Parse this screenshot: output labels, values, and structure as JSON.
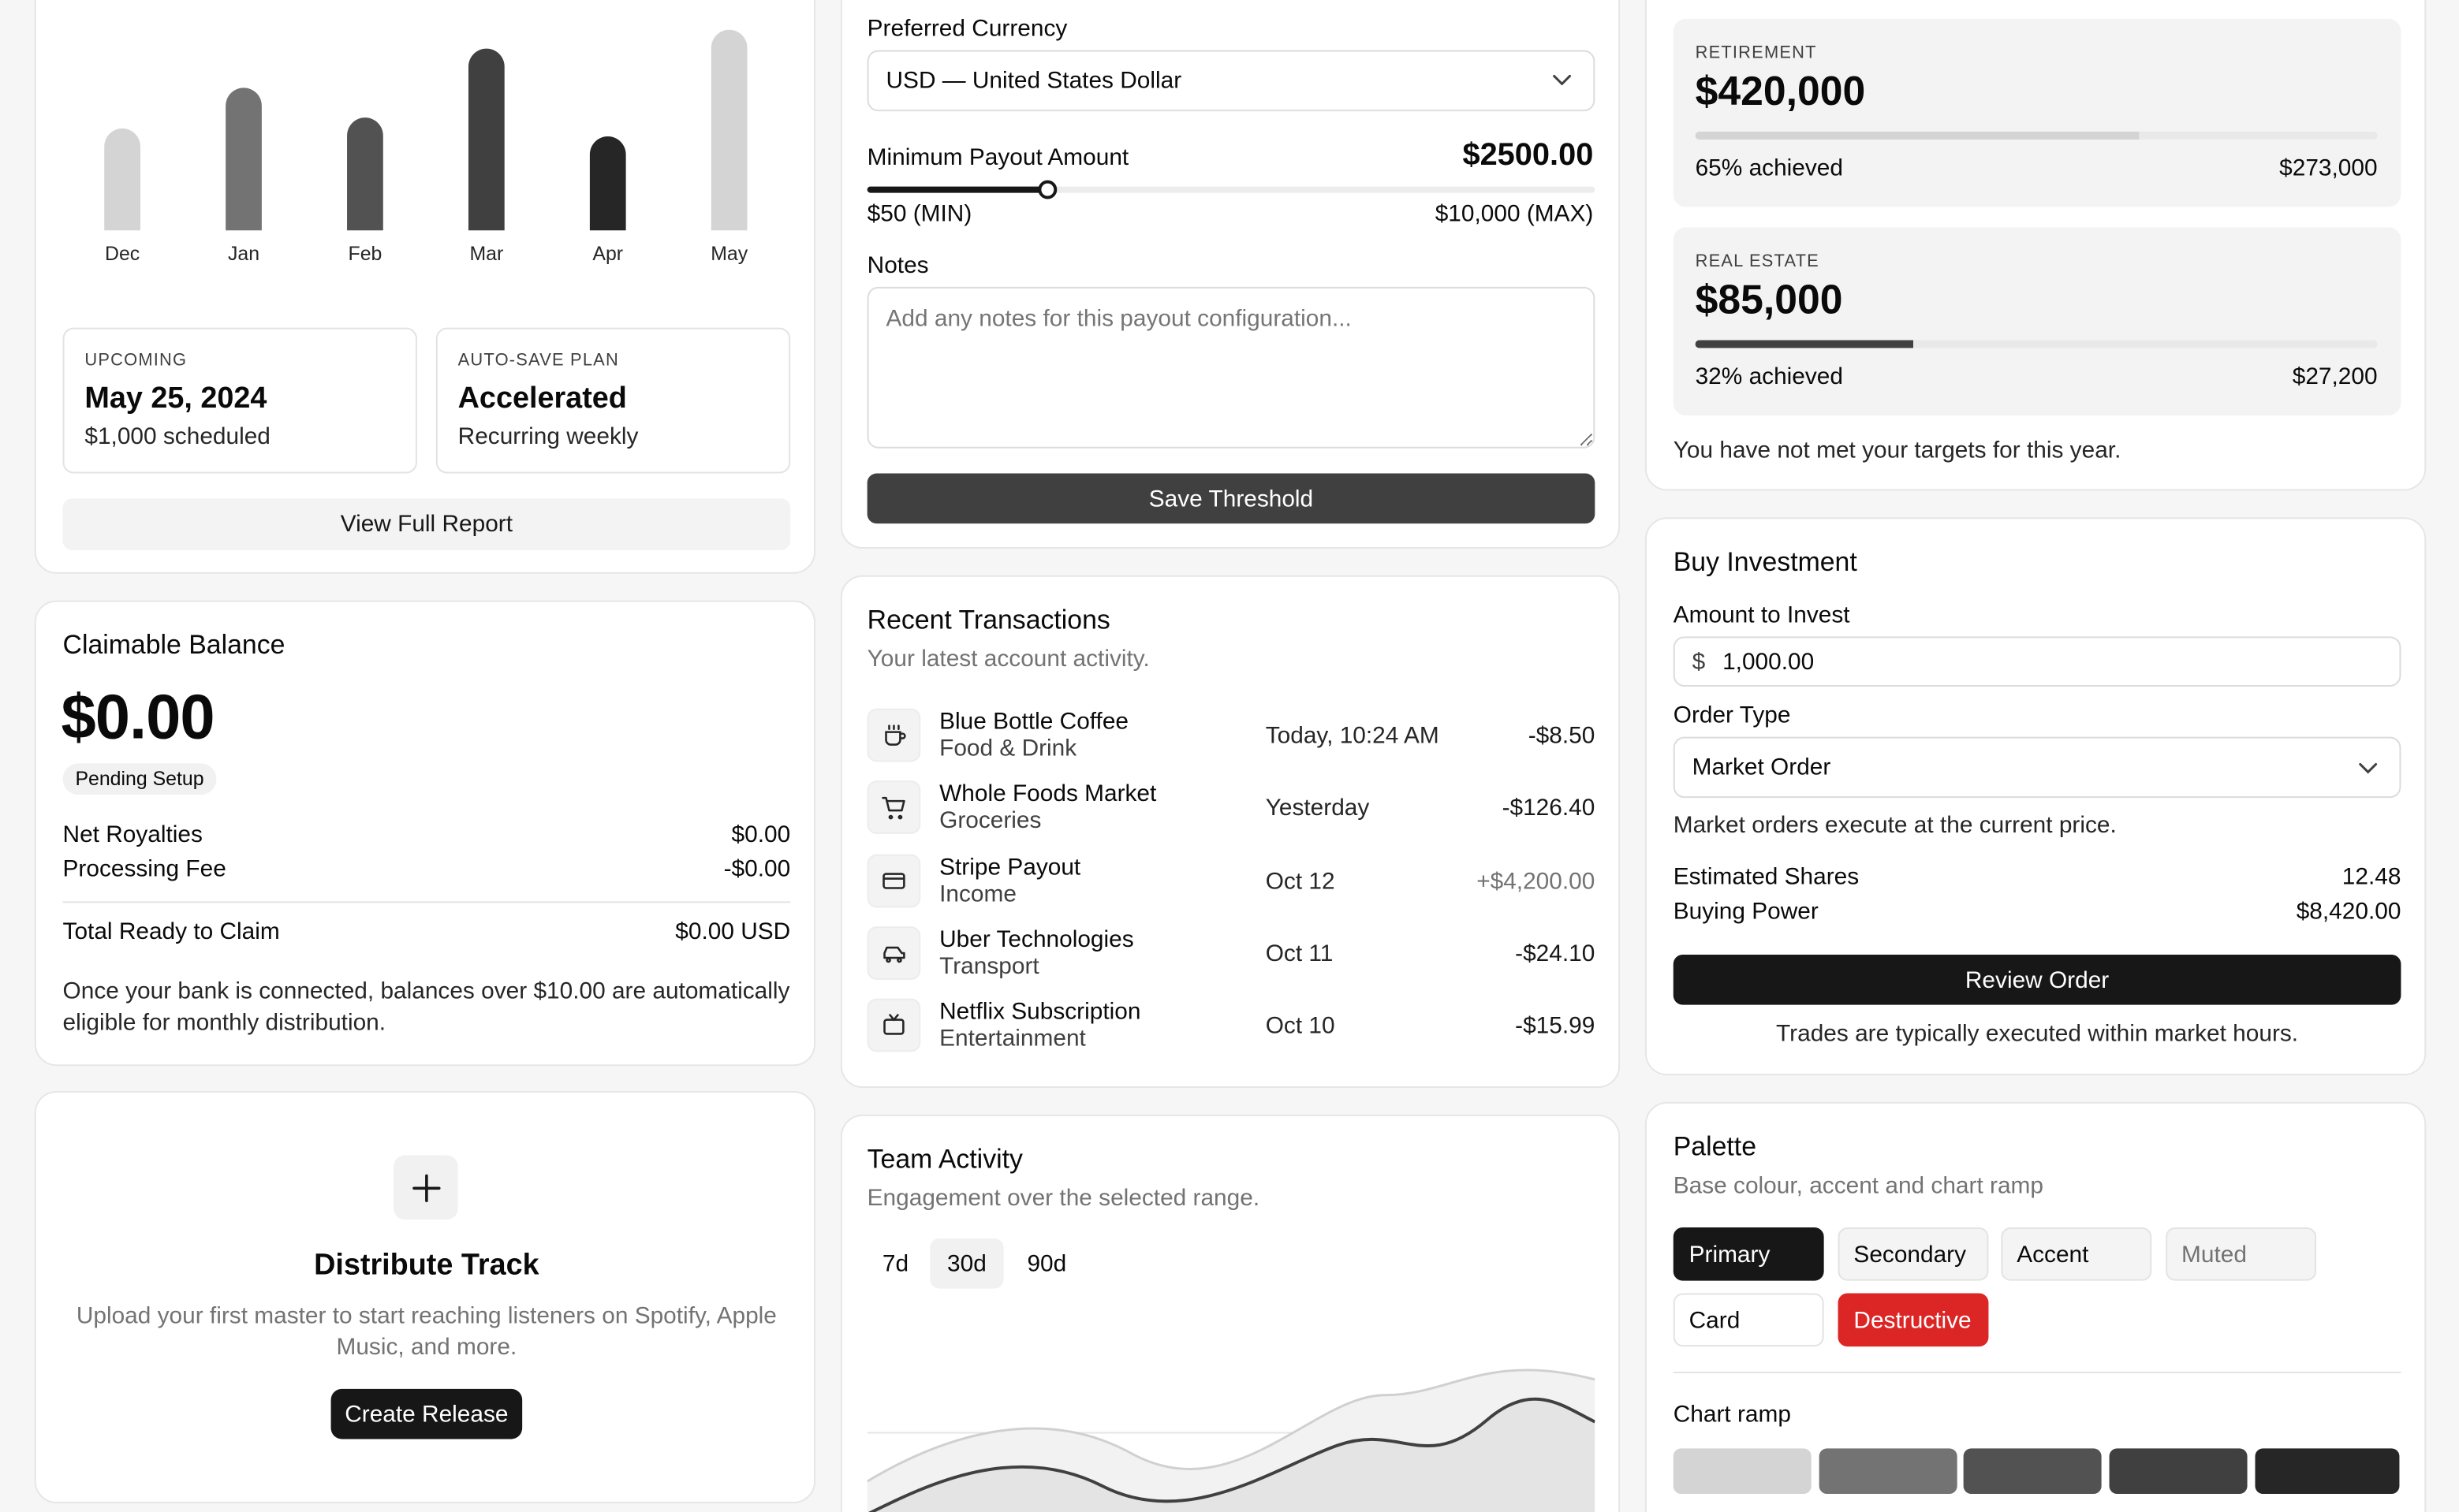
{
  "savings_chart": {
    "chart_data": {
      "type": "bar",
      "categories": [
        "Dec",
        "Jan",
        "Feb",
        "Mar",
        "Apr",
        "May"
      ],
      "values": [
        65,
        91,
        72,
        116,
        60,
        128
      ],
      "colors": [
        "#d4d4d4",
        "#737373",
        "#525252",
        "#404040",
        "#262626",
        "#d4d4d4"
      ]
    },
    "upcoming": {
      "label": "UPCOMING",
      "date": "May 25, 2024",
      "detail": "$1,000 scheduled"
    },
    "plan": {
      "label": "AUTO-SAVE PLAN",
      "name": "Accelerated",
      "detail": "Recurring weekly"
    },
    "report_button": "View Full Report"
  },
  "claimable": {
    "title": "Claimable Balance",
    "amount": "$0.00",
    "badge": "Pending Setup",
    "rows": [
      {
        "label": "Net Royalties",
        "value": "$0.00"
      },
      {
        "label": "Processing Fee",
        "value": "-$0.00"
      }
    ],
    "total_label": "Total Ready to Claim",
    "total_value": "$0.00 USD",
    "note": "Once your bank is connected, balances over $10.00 are automatically eligible for monthly distribution."
  },
  "distribute": {
    "title": "Distribute Track",
    "description": "Upload your first master to start reaching listeners on Spotify, Apple Music, and more.",
    "button": "Create Release"
  },
  "payout": {
    "currency_label": "Preferred Currency",
    "currency_value": "USD — United States Dollar",
    "min_label": "Minimum Payout Amount",
    "min_value": "$2500.00",
    "slider_fraction": 0.2475,
    "slider_min": "$50 (MIN)",
    "slider_max": "$10,000 (MAX)",
    "notes_label": "Notes",
    "notes_placeholder": "Add any notes for this payout configuration...",
    "save_button": "Save Threshold"
  },
  "transactions": {
    "title": "Recent Transactions",
    "subtitle": "Your latest account activity.",
    "items": [
      {
        "icon": "coffee-icon",
        "name": "Blue Bottle Coffee",
        "category": "Food & Drink",
        "date": "Today, 10:24 AM",
        "amount": "-$8.50"
      },
      {
        "icon": "cart-icon",
        "name": "Whole Foods Market",
        "category": "Groceries",
        "date": "Yesterday",
        "amount": "-$126.40"
      },
      {
        "icon": "card-icon",
        "name": "Stripe Payout",
        "category": "Income",
        "date": "Oct 12",
        "amount": "+$4,200.00"
      },
      {
        "icon": "car-icon",
        "name": "Uber Technologies",
        "category": "Transport",
        "date": "Oct 11",
        "amount": "-$24.10"
      },
      {
        "icon": "tv-icon",
        "name": "Netflix Subscription",
        "category": "Entertainment",
        "date": "Oct 10",
        "amount": "-$15.99"
      }
    ]
  },
  "team": {
    "title": "Team Activity",
    "subtitle": "Engagement over the selected range.",
    "ranges": [
      "7d",
      "30d",
      "90d"
    ],
    "selected_range": "30d"
  },
  "goals": {
    "items": [
      {
        "label": "RETIREMENT",
        "target": "$420,000",
        "progress": 0.65,
        "achieved": "65% achieved",
        "current": "$273,000",
        "fill": "#d4d4d4"
      },
      {
        "label": "REAL ESTATE",
        "target": "$85,000",
        "progress": 0.32,
        "achieved": "32% achieved",
        "current": "$27,200",
        "fill": "#404040"
      }
    ],
    "note": "You have not met your targets for this year."
  },
  "buy": {
    "title": "Buy Investment",
    "amount_label": "Amount to Invest",
    "currency_symbol": "$",
    "amount_value": "1,000.00",
    "order_label": "Order Type",
    "order_value": "Market Order",
    "order_hint": "Market orders execute at the current price.",
    "rows": [
      {
        "label": "Estimated Shares",
        "value": "12.48"
      },
      {
        "label": "Buying Power",
        "value": "$8,420.00"
      }
    ],
    "button": "Review Order",
    "footer": "Trades are typically executed within market hours."
  },
  "palette": {
    "title": "Palette",
    "subtitle": "Base colour, accent and chart ramp",
    "chips": [
      "Primary",
      "Secondary",
      "Accent",
      "Muted",
      "Card",
      "Destructive"
    ],
    "ramp_label": "Chart ramp",
    "ramp_colors": [
      "#d4d4d4",
      "#737373",
      "#525252",
      "#404040",
      "#262626"
    ],
    "accent_color": "#dc2626",
    "primary_color": "#171717"
  }
}
